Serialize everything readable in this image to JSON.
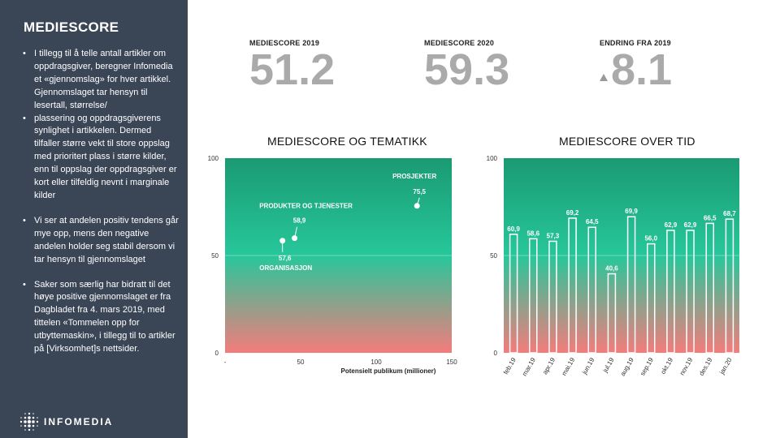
{
  "sidebar": {
    "title": "MEDIESCORE",
    "bullets": [
      "I tillegg til å telle antall artikler om oppdragsgiver, beregner Infomedia et «gjennomslag» for hver artikkel. Gjennomslaget tar hensyn til lesertall, størrelse/",
      "plassering og oppdragsgiverens synlighet i artikkelen. Dermed tilfaller større vekt til store oppslag med prioritert plass i større kilder, enn til oppslag der oppdragsgiver er kort eller tilfeldig nevnt i marginale kilder",
      "Vi ser at andelen positiv tendens går mye opp, mens den negative andelen holder seg stabil dersom vi tar hensyn til gjennomslaget",
      "Saker som særlig har bidratt til det høye positive gjennomslaget er fra Dagbladet fra 4. mars 2019, med tittelen «Tommelen opp for utbyttemaskin», i tillegg til to artikler på [Virksomhet]s nettsider."
    ],
    "logo_text": "INFOMEDIA"
  },
  "kpis": [
    {
      "label": "MEDIESCORE 2019",
      "value": "51.2"
    },
    {
      "label": "MEDIESCORE 2020",
      "value": "59.3"
    },
    {
      "label": "ENDRING FRA 2019",
      "value": "8.1",
      "indicator": "up-arrow"
    }
  ],
  "colors": {
    "top": "#1a9a72",
    "mid": "#27c79b",
    "bottom": "#f47c7c",
    "sidebar": "#3a4556"
  },
  "chart_data": [
    {
      "type": "scatter",
      "title": "MEDIESCORE OG TEMATIKK",
      "xlabel": "Potensielt publikum (millioner)",
      "ylabel": "",
      "xlim": [
        0,
        150
      ],
      "ylim": [
        0,
        100
      ],
      "x_ticks": [
        "-",
        "50",
        "100",
        "150"
      ],
      "y_ticks": [
        "0",
        "50",
        "100"
      ],
      "points": [
        {
          "label": "ORGANISASJON",
          "value_label": "57,6",
          "x": 38,
          "y": 57.6
        },
        {
          "label": "PRODUKTER OG TJENESTER",
          "value_label": "58,9",
          "x": 46,
          "y": 58.9
        },
        {
          "label": "PROSJEKTER",
          "value_label": "75,5",
          "x": 127,
          "y": 75.5
        }
      ]
    },
    {
      "type": "bar",
      "title": "MEDIESCORE OVER TID",
      "ylim": [
        0,
        100
      ],
      "y_ticks": [
        "0",
        "50",
        "100"
      ],
      "categories": [
        "feb.19",
        "mar.19",
        "apr.19",
        "mai.19",
        "jun.19",
        "jul.19",
        "aug.19",
        "sep.19",
        "okt.19",
        "nov.19",
        "des.19",
        "jan.20"
      ],
      "values": [
        60.9,
        58.6,
        57.3,
        69.2,
        64.5,
        40.6,
        69.9,
        56.0,
        62.9,
        62.9,
        66.5,
        68.7
      ],
      "value_labels": [
        "60,9",
        "58,6",
        "57,3",
        "69,2",
        "64,5",
        "40,6",
        "69,9",
        "56,0",
        "62,9",
        "62,9",
        "66,5",
        "68,7"
      ]
    }
  ]
}
